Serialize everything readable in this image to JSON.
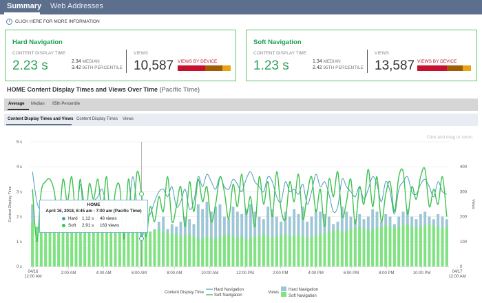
{
  "nav": {
    "tabs": [
      {
        "label": "Summary"
      },
      {
        "label": "Web Addresses"
      }
    ]
  },
  "info": {
    "label": "CLICK HERE FOR MORE INFORMATION"
  },
  "cards": [
    {
      "title": "Hard Navigation",
      "cdt_label": "CONTENT DISPLAY TIME",
      "cdt_value": "2.23 s",
      "median": "2.34",
      "median_label": "MEDIAN",
      "p95": "3.42",
      "p95_label": "95TH PERCENTILE",
      "views_label": "VIEWS",
      "views_value": "10,587",
      "device_label": "VIEWS BY DEVICE",
      "device_shares": [
        0.52,
        0.33,
        0.15
      ]
    },
    {
      "title": "Soft Navigation",
      "cdt_label": "CONTENT DISPLAY TIME",
      "cdt_value": "1.23 s",
      "median": "1.34",
      "median_label": "MEDIAN",
      "p95": "2.42",
      "p95_label": "95TH PERCENTILE",
      "views_label": "VIEWS",
      "views_value": "13,587",
      "device_label": "VIEWS BY DEVICE",
      "device_shares": [
        0.55,
        0.3,
        0.15
      ]
    }
  ],
  "colors": {
    "device": [
      "#c8102e",
      "#a15c05",
      "#e8a317"
    ],
    "hard_line": "#4a9ab8",
    "soft_line": "#3cc24e",
    "hard_bar": "#9fc6d6",
    "soft_bar": "#7fe37f"
  },
  "section": {
    "title": "HOME Content Display Times and Views Over Time",
    "timezone": "(Pacific Time)"
  },
  "stat_tabs": [
    {
      "label": "Average"
    },
    {
      "label": "Median"
    },
    {
      "label": "95th Percentile"
    }
  ],
  "view_tabs": [
    {
      "label": "Content Display Times and Views"
    },
    {
      "label": "Content Display Times"
    },
    {
      "label": "Views"
    }
  ],
  "chart_hint": "Click and drag to zoom",
  "tooltip": {
    "title": "HOME",
    "date": "April 16, 2018, 6:45 am - 7:00 am (Pacific Time)",
    "rows": [
      {
        "name": "Hard",
        "time": "1.12 s",
        "views": "48 views"
      },
      {
        "name": "Soft",
        "time": "2.91 s",
        "views": "163 views"
      }
    ]
  },
  "chart_data": {
    "type": "line",
    "ylabel": "Content Display Time",
    "y2label": "Views",
    "ylim": [
      0,
      5
    ],
    "y2lim": [
      0,
      500
    ],
    "yticks": [
      "0 s",
      "1 s",
      "2 s",
      "3 s",
      "4 s",
      "5 s"
    ],
    "y2ticks": [
      "0",
      "100",
      "200",
      "300",
      "400"
    ],
    "xticks": [
      "04/16 12:00 AM",
      "2:00 AM",
      "4:00 AM",
      "6:00 AM",
      "8:00 AM",
      "10:00 AM",
      "12:00 PM",
      "2:00 PM",
      "4:00 PM",
      "6:00 PM",
      "8:00 PM",
      "10:00 PM",
      "04/17 12:00 AM"
    ],
    "x_interval": "15 min",
    "series": [
      {
        "name": "Hard Navigation",
        "kind": "line",
        "axis": "time",
        "values": [
          3.8,
          2.6,
          2.2,
          2.0,
          1.9,
          2.1,
          2.4,
          2.2,
          2.3,
          2.0,
          2.1,
          3.3,
          2.4,
          2.2,
          2.6,
          2.8,
          3.1,
          2.4,
          2.2,
          2.0,
          1.9,
          2.1,
          2.2,
          3.6,
          2.4,
          1.12,
          1.9,
          2.1,
          2.6,
          3.0,
          3.1,
          2.8,
          3.2,
          2.4,
          2.6,
          3.1,
          2.3,
          2.6,
          3.6,
          3.2,
          3.7,
          3.4,
          3.1,
          3.6,
          3.2,
          3.1,
          3.5,
          3.3,
          3.0,
          3.5,
          3.8,
          3.4,
          3.2,
          3.0,
          3.6,
          3.4,
          2.8,
          2.6,
          3.4,
          3.0,
          3.1,
          2.9,
          3.3,
          2.5,
          3.0,
          3.7,
          3.2,
          3.4,
          2.9,
          2.2,
          2.4,
          3.5,
          3.2,
          3.0,
          2.8,
          3.2,
          2.7,
          3.1,
          3.6,
          3.3,
          2.6,
          3.4,
          3.0,
          2.1,
          3.1,
          3.4,
          3.6,
          3.0,
          2.9,
          3.3,
          3.5,
          3.2,
          2.8,
          3.4,
          3.0,
          2.9
        ]
      },
      {
        "name": "Soft Navigation",
        "kind": "line",
        "axis": "time",
        "values": [
          3.1,
          1.0,
          3.0,
          3.4,
          3.5,
          3.0,
          1.8,
          3.5,
          2.6,
          3.6,
          2.0,
          3.5,
          1.4,
          3.3,
          2.7,
          3.5,
          2.2,
          3.6,
          1.5,
          3.0,
          3.2,
          1.1,
          3.5,
          2.0,
          3.8,
          2.91,
          1.2,
          2.4,
          1.8,
          2.8,
          2.2,
          3.6,
          1.8,
          2.4,
          3.2,
          1.6,
          3.4,
          2.2,
          3.5,
          2.6,
          3.2,
          1.8,
          2.5,
          3.6,
          3.0,
          1.9,
          3.3,
          2.4,
          3.7,
          2.1,
          2.8,
          1.6,
          3.6,
          2.5,
          3.4,
          2.0,
          3.8,
          2.3,
          1.9,
          3.4,
          2.6,
          3.7,
          1.9,
          2.9,
          3.6,
          2.2,
          3.1,
          1.6,
          3.5,
          2.8,
          3.8,
          2.0,
          2.6,
          3.5,
          1.7,
          3.2,
          2.5,
          3.9,
          2.4,
          3.6,
          1.8,
          2.9,
          3.4,
          2.2,
          3.6,
          3.8,
          2.1,
          3.2,
          2.7,
          3.6,
          3.9,
          2.4,
          3.1,
          2.5,
          3.6,
          2.0
        ]
      },
      {
        "name": "Hard Navigation",
        "kind": "bar",
        "axis": "views",
        "values": [
          250,
          120,
          90,
          80,
          70,
          80,
          100,
          85,
          90,
          80,
          75,
          95,
          80,
          70,
          90,
          110,
          130,
          100,
          80,
          70,
          60,
          80,
          90,
          160,
          100,
          48,
          80,
          90,
          150,
          180,
          200,
          150,
          170,
          160,
          180,
          200,
          190,
          170,
          250,
          230,
          260,
          220,
          240,
          250,
          200,
          190,
          240,
          220,
          210,
          230,
          250,
          220,
          200,
          190,
          240,
          230,
          200,
          180,
          220,
          200,
          230,
          210,
          240,
          180,
          200,
          230,
          220,
          210,
          200,
          170,
          180,
          240,
          220,
          200,
          190,
          210,
          190,
          200,
          230,
          220,
          180,
          210,
          200,
          170,
          200,
          220,
          230,
          200,
          190,
          210,
          220,
          200,
          190,
          210,
          200,
          190
        ]
      },
      {
        "name": "Soft Navigation",
        "kind": "bar",
        "axis": "views",
        "values": [
          180,
          160,
          150,
          140,
          170,
          160,
          150,
          155,
          160,
          150,
          145,
          160,
          150,
          140,
          160,
          155,
          150,
          165,
          150,
          145,
          160,
          155,
          150,
          160,
          170,
          163,
          150,
          140,
          145,
          150,
          140,
          135,
          130,
          130,
          120,
          125,
          130,
          120,
          115,
          110,
          120,
          115,
          110,
          120,
          125,
          130,
          120,
          115,
          120,
          110,
          115,
          120,
          125,
          130,
          120,
          115,
          120,
          125,
          130,
          120,
          125,
          130,
          120,
          115,
          120,
          125,
          130,
          135,
          140,
          145,
          150,
          140,
          145,
          150,
          155,
          160,
          150,
          145,
          150,
          155,
          160,
          165,
          160,
          155,
          160,
          165,
          170,
          160,
          155,
          160,
          165,
          170,
          165,
          160,
          155,
          160
        ]
      }
    ],
    "legend": {
      "time_label": "Content Display Time",
      "views_label": "Views",
      "items": [
        "Hard Navigation",
        "Soft Navigation"
      ]
    },
    "grid": true,
    "legend_position": "bottom"
  }
}
